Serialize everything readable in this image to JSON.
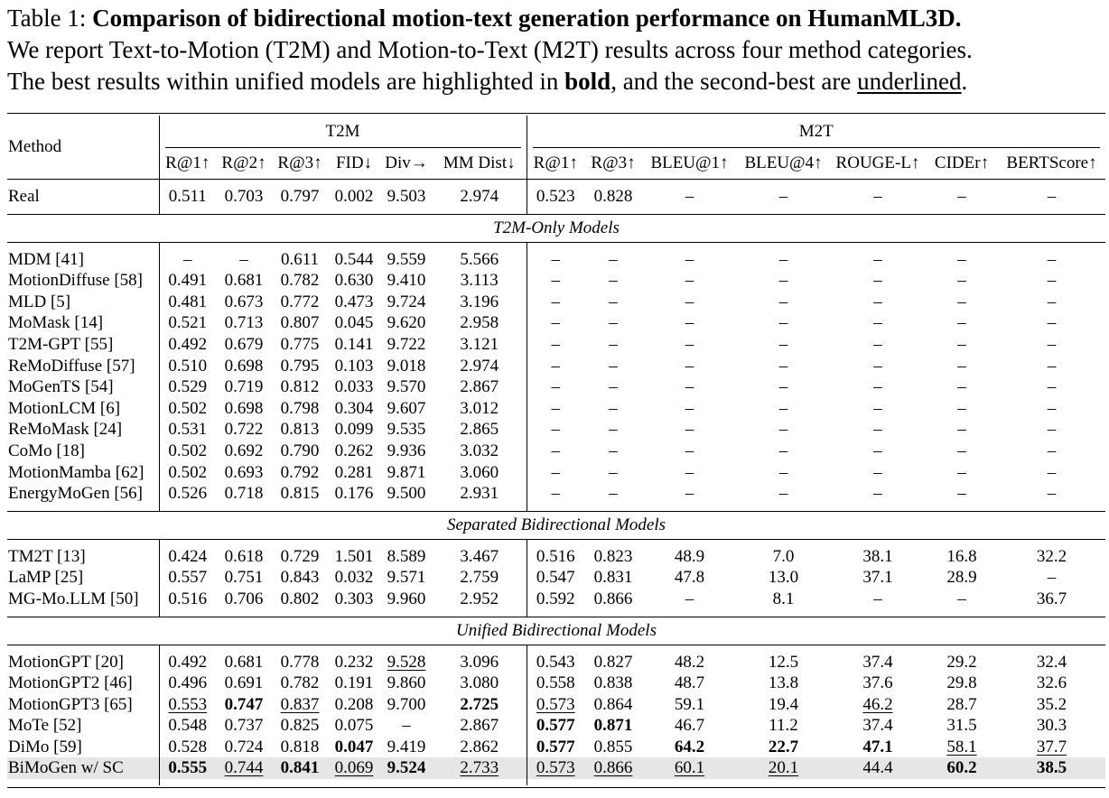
{
  "caption": {
    "label": "Table 1: ",
    "title": "Comparison of bidirectional motion-text generation performance on HumanML3D.",
    "line2": "We report Text-to-Motion (T2M) and Motion-to-Text (M2T) results across four method categories.",
    "line3_a": "The best results within unified models are highlighted in ",
    "bold_word": "bold",
    "line3_b": ", and the second-best are ",
    "underline_word": "underlined",
    "line3_c": "."
  },
  "table": {
    "method_header": "Method",
    "groups": [
      "T2M",
      "M2T"
    ],
    "columns": [
      "R@1↑",
      "R@2↑",
      "R@3↑",
      "FID↓",
      "Div→",
      "MM Dist↓",
      "R@1↑",
      "R@3↑",
      "BLEU@1↑",
      "BLEU@4↑",
      "ROUGE-L↑",
      "CIDEr↑",
      "BERTScore↑"
    ],
    "sections": [
      {
        "category": "",
        "rows": [
          {
            "method": "Real",
            "cells": [
              "0.511",
              "0.703",
              "0.797",
              "0.002",
              "9.503",
              "2.974",
              "0.523",
              "0.828",
              "–",
              "–",
              "–",
              "–",
              "–"
            ]
          }
        ]
      },
      {
        "category": "T2M-Only Models",
        "rows": [
          {
            "method": "MDM [41]",
            "cells": [
              "–",
              "–",
              "0.611",
              "0.544",
              "9.559",
              "5.566",
              "–",
              "–",
              "–",
              "–",
              "–",
              "–",
              "–"
            ]
          },
          {
            "method": "MotionDiffuse [58]",
            "cells": [
              "0.491",
              "0.681",
              "0.782",
              "0.630",
              "9.410",
              "3.113",
              "–",
              "–",
              "–",
              "–",
              "–",
              "–",
              "–"
            ]
          },
          {
            "method": "MLD [5]",
            "cells": [
              "0.481",
              "0.673",
              "0.772",
              "0.473",
              "9.724",
              "3.196",
              "–",
              "–",
              "–",
              "–",
              "–",
              "–",
              "–"
            ]
          },
          {
            "method": "MoMask [14]",
            "cells": [
              "0.521",
              "0.713",
              "0.807",
              "0.045",
              "9.620",
              "2.958",
              "–",
              "–",
              "–",
              "–",
              "–",
              "–",
              "–"
            ]
          },
          {
            "method": "T2M-GPT [55]",
            "cells": [
              "0.492",
              "0.679",
              "0.775",
              "0.141",
              "9.722",
              "3.121",
              "–",
              "–",
              "–",
              "–",
              "–",
              "–",
              "–"
            ]
          },
          {
            "method": "ReMoDiffuse [57]",
            "cells": [
              "0.510",
              "0.698",
              "0.795",
              "0.103",
              "9.018",
              "2.974",
              "–",
              "–",
              "–",
              "–",
              "–",
              "–",
              "–"
            ]
          },
          {
            "method": "MoGenTS [54]",
            "cells": [
              "0.529",
              "0.719",
              "0.812",
              "0.033",
              "9.570",
              "2.867",
              "–",
              "–",
              "–",
              "–",
              "–",
              "–",
              "–"
            ]
          },
          {
            "method": "MotionLCM [6]",
            "cells": [
              "0.502",
              "0.698",
              "0.798",
              "0.304",
              "9.607",
              "3.012",
              "–",
              "–",
              "–",
              "–",
              "–",
              "–",
              "–"
            ]
          },
          {
            "method": "ReMoMask [24]",
            "cells": [
              "0.531",
              "0.722",
              "0.813",
              "0.099",
              "9.535",
              "2.865",
              "–",
              "–",
              "–",
              "–",
              "–",
              "–",
              "–"
            ]
          },
          {
            "method": "CoMo [18]",
            "cells": [
              "0.502",
              "0.692",
              "0.790",
              "0.262",
              "9.936",
              "3.032",
              "–",
              "–",
              "–",
              "–",
              "–",
              "–",
              "–"
            ]
          },
          {
            "method": "MotionMamba [62]",
            "cells": [
              "0.502",
              "0.693",
              "0.792",
              "0.281",
              "9.871",
              "3.060",
              "–",
              "–",
              "–",
              "–",
              "–",
              "–",
              "–"
            ]
          },
          {
            "method": "EnergyMoGen [56]",
            "cells": [
              "0.526",
              "0.718",
              "0.815",
              "0.176",
              "9.500",
              "2.931",
              "–",
              "–",
              "–",
              "–",
              "–",
              "–",
              "–"
            ]
          }
        ]
      },
      {
        "category": "Separated Bidirectional Models",
        "rows": [
          {
            "method": "TM2T [13]",
            "cells": [
              "0.424",
              "0.618",
              "0.729",
              "1.501",
              "8.589",
              "3.467",
              "0.516",
              "0.823",
              "48.9",
              "7.0",
              "38.1",
              "16.8",
              "32.2"
            ]
          },
          {
            "method": "LaMP [25]",
            "cells": [
              "0.557",
              "0.751",
              "0.843",
              "0.032",
              "9.571",
              "2.759",
              "0.547",
              "0.831",
              "47.8",
              "13.0",
              "37.1",
              "28.9",
              "–"
            ]
          },
          {
            "method": "MG-Mo.LLM [50]",
            "cells": [
              "0.516",
              "0.706",
              "0.802",
              "0.303",
              "9.960",
              "2.952",
              "0.592",
              "0.866",
              "–",
              "8.1",
              "–",
              "–",
              "36.7"
            ]
          }
        ]
      },
      {
        "category": "Unified Bidirectional Models",
        "rows": [
          {
            "method": "MotionGPT [20]",
            "cells": [
              "0.492",
              "0.681",
              "0.778",
              "0.232",
              "9.528",
              "3.096",
              "0.543",
              "0.827",
              "48.2",
              "12.5",
              "37.4",
              "29.2",
              "32.4"
            ],
            "underline": [
              4
            ]
          },
          {
            "method": "MotionGPT2 [46]",
            "cells": [
              "0.496",
              "0.691",
              "0.782",
              "0.191",
              "9.860",
              "3.080",
              "0.558",
              "0.838",
              "48.7",
              "13.8",
              "37.6",
              "29.8",
              "32.6"
            ]
          },
          {
            "method": "MotionGPT3 [65]",
            "cells": [
              "0.553",
              "0.747",
              "0.837",
              "0.208",
              "9.700",
              "2.725",
              "0.573",
              "0.864",
              "59.1",
              "19.4",
              "46.2",
              "28.7",
              "35.2"
            ],
            "bold": [
              1,
              5
            ],
            "underline": [
              0,
              2,
              6,
              10
            ]
          },
          {
            "method": "MoTe [52]",
            "cells": [
              "0.548",
              "0.737",
              "0.825",
              "0.075",
              "–",
              "2.867",
              "0.577",
              "0.871",
              "46.7",
              "11.2",
              "37.4",
              "31.5",
              "30.3"
            ],
            "bold": [
              6,
              7
            ]
          },
          {
            "method": "DiMo [59]",
            "cells": [
              "0.528",
              "0.724",
              "0.818",
              "0.047",
              "9.419",
              "2.862",
              "0.577",
              "0.855",
              "64.2",
              "22.7",
              "47.1",
              "58.1",
              "37.7"
            ],
            "bold": [
              3,
              6,
              8,
              9,
              10
            ],
            "underline": [
              11,
              12
            ]
          },
          {
            "method": "BiMoGen w/ SC",
            "cells": [
              "0.555",
              "0.744",
              "0.841",
              "0.069",
              "9.524",
              "2.733",
              "0.573",
              "0.866",
              "60.1",
              "20.1",
              "44.4",
              "60.2",
              "38.5"
            ],
            "bold": [
              0,
              2,
              4,
              11,
              12
            ],
            "underline": [
              1,
              3,
              5,
              6,
              7,
              8,
              9
            ],
            "highlight": true
          }
        ]
      }
    ]
  }
}
